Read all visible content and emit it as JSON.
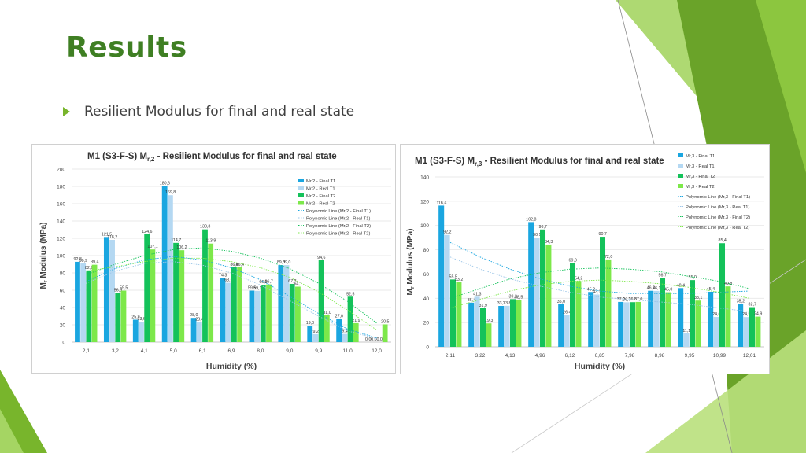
{
  "slide": {
    "title": "Results",
    "bullet": "Resilient Modulus for final and real state"
  },
  "colors": {
    "final_t1": "#1aa6e0",
    "real_t1": "#b4d8f2",
    "final_t2": "#14c25a",
    "real_t2": "#7de84a",
    "title_green": "#3f7f23",
    "accent_green": "#78b52c"
  },
  "chart_data": [
    {
      "type": "bar",
      "title": "M1 (S3-F-S) M",
      "title_sub": "r,2",
      "title_rest": " - Resilient Modulus for final and real state",
      "xlabel": "Humidity (%)",
      "ylabel": "Modulus (MPa)",
      "ylabel_prefix": "M",
      "ylabel_sub": "r",
      "ylim": [
        0,
        200
      ],
      "yticks": [
        0,
        20,
        40,
        60,
        80,
        100,
        120,
        140,
        160,
        180,
        200
      ],
      "grid": true,
      "legend_position": "top-right",
      "categories": [
        "2,1",
        "3,2",
        "4,1",
        "5,0",
        "6,1",
        "6,9",
        "8,0",
        "9,0",
        "9,9",
        "11,0",
        "12,0"
      ],
      "series": [
        {
          "name": "Mr,2 - Final T1",
          "values": [
            92.8,
            121.5,
            25.9,
            180.6,
            28.0,
            74.3,
            59.5,
            89.0,
            19.0,
            27.0,
            0.0
          ],
          "labels": [
            "92,8",
            "121,5",
            "25,9",
            "180,6",
            "28,0",
            "74,3",
            "59,5",
            "89,0",
            "19,0",
            "27,0",
            "0,0"
          ]
        },
        {
          "name": "Mr,2 - Real T1",
          "values": [
            90.9,
            118.2,
            23.6,
            169.8,
            23.4,
            68.6,
            59.1,
            89.0,
            9.2,
            9.4,
            0.0
          ],
          "labels": [
            "90,9",
            "118,2",
            "23,6",
            "169,8",
            "23,4",
            "68,6",
            "59,1",
            "89,0",
            "9,2",
            "9,4",
            "0,0"
          ]
        },
        {
          "name": "Mr,2 - Final T2",
          "values": [
            82.9,
            56.9,
            124.6,
            114.7,
            130.3,
            86.4,
            66.2,
            67.3,
            94.6,
            52.5,
            0.0
          ],
          "labels": [
            "82,9",
            "56,9",
            "124,6",
            "114,7",
            "130,3",
            "86,4",
            "66,2",
            "67,3",
            "94,6",
            "52,5",
            "0,0"
          ]
        },
        {
          "name": "Mr,2 - Real T2",
          "values": [
            89.4,
            59.5,
            107.1,
            106.2,
            113.9,
            86.4,
            66.7,
            64.1,
            31.0,
            21.9,
            20.5
          ],
          "labels": [
            "89,4",
            "59,5",
            "107,1",
            "106,2",
            "113,9",
            "86,4",
            "66,7",
            "64,1",
            "31,0",
            "21,9",
            "20,5"
          ]
        }
      ],
      "trendlines": [
        {
          "name": "Polynomic Line (Mr,2 - Final T1)",
          "style": "dotted",
          "color": "#1aa6e0",
          "values": [
            70,
            85,
            95,
            99,
            95,
            86,
            72,
            53,
            33,
            15,
            5
          ]
        },
        {
          "name": "Polynomic Line (Mr,2 - Real T1)",
          "style": "dotted",
          "color": "#9cc6e8",
          "values": [
            68,
            82,
            91,
            93,
            89,
            80,
            66,
            48,
            30,
            13,
            4
          ]
        },
        {
          "name": "Polynomic Line (Mr,2 - Final T2)",
          "style": "dotted",
          "color": "#14c25a",
          "values": [
            78,
            90,
            100,
            107,
            109,
            105,
            97,
            85,
            68,
            47,
            22
          ]
        },
        {
          "name": "Polynomic Line (Mr,2 - Real T2)",
          "style": "dotted",
          "color": "#7de84a",
          "values": [
            82,
            87,
            93,
            97,
            97,
            93,
            86,
            75,
            58,
            37,
            14
          ]
        }
      ]
    },
    {
      "type": "bar",
      "title": "M1 (S3-F-S) M",
      "title_sub": "r,3",
      "title_rest": " - Resilient Modulus for final and real state",
      "xlabel": "Humidity (%)",
      "ylabel": "Modulus (MPa)",
      "ylabel_prefix": "M",
      "ylabel_sub": "r",
      "ylim": [
        0,
        140
      ],
      "yticks": [
        0,
        20,
        40,
        60,
        80,
        100,
        120,
        140
      ],
      "grid": true,
      "legend_position": "top-right",
      "categories": [
        "2,11",
        "3,22",
        "4,13",
        "4,96",
        "6,12",
        "6,85",
        "7,98",
        "8,98",
        "9,95",
        "10,99",
        "12,01"
      ],
      "series": [
        {
          "name": "Mr,3 - Final T1",
          "values": [
            116.4,
            36.4,
            33.7,
            102.8,
            35.0,
            45.2,
            37.0,
            46.2,
            48.4,
            45.4,
            35.2
          ],
          "labels": [
            "116,4",
            "36,4",
            "33,7",
            "102,8",
            "35,0",
            "45,2",
            "37,0",
            "46,2",
            "48,4",
            "45,4",
            "35,2"
          ]
        },
        {
          "name": "Mr,3 - Real T1",
          "values": [
            92.2,
            41.3,
            33.8,
            90.1,
            26.4,
            43.1,
            36.7,
            46.1,
            11.1,
            24.6,
            24.5
          ],
          "labels": [
            "92,2",
            "41,3",
            "33,8",
            "90,1",
            "26,4",
            "43,1",
            "36,7",
            "46,1",
            "11,1",
            "24,6",
            "24,5"
          ]
        },
        {
          "name": "Mr,3 - Final T2",
          "values": [
            55.5,
            31.9,
            39.3,
            96.7,
            69.0,
            90.7,
            36.8,
            56.7,
            55.0,
            85.4,
            32.7
          ],
          "labels": [
            "55,5",
            "31,9",
            "39,3",
            "96,7",
            "69,0",
            "90,7",
            "36,8",
            "56,7",
            "55,0",
            "85,4",
            "32,7"
          ]
        },
        {
          "name": "Mr,3 - Real T2",
          "values": [
            53.2,
            19.3,
            38.5,
            84.3,
            54.2,
            72.0,
            37.0,
            45.0,
            38.1,
            49.8,
            24.9
          ],
          "labels": [
            "53,2",
            "19,3",
            "38,5",
            "84,3",
            "54,2",
            "72,0",
            "37,0",
            "45,0",
            "38,1",
            "49,8",
            "24,9"
          ]
        }
      ],
      "trendlines": [
        {
          "name": "Polynomic Line (Mr,3 - Final T1)",
          "style": "dotted",
          "color": "#1aa6e0",
          "values": [
            86,
            74,
            64,
            56,
            50,
            46,
            44,
            44,
            44,
            45,
            46
          ]
        },
        {
          "name": "Polynomic Line (Mr,3 - Real T1)",
          "style": "dotted",
          "color": "#9cc6e8",
          "values": [
            74,
            64,
            56,
            50,
            45,
            41,
            39,
            37,
            35,
            32,
            29
          ]
        },
        {
          "name": "Polynomic Line (Mr,3 - Final T2)",
          "style": "dotted",
          "color": "#14c25a",
          "values": [
            40,
            48,
            56,
            61,
            64,
            65,
            64,
            62,
            58,
            54,
            48
          ]
        },
        {
          "name": "Polynomic Line (Mr,3 - Real T2)",
          "style": "dotted",
          "color": "#7de84a",
          "values": [
            32,
            39,
            46,
            51,
            54,
            55,
            54,
            52,
            49,
            45,
            40
          ]
        }
      ]
    }
  ]
}
